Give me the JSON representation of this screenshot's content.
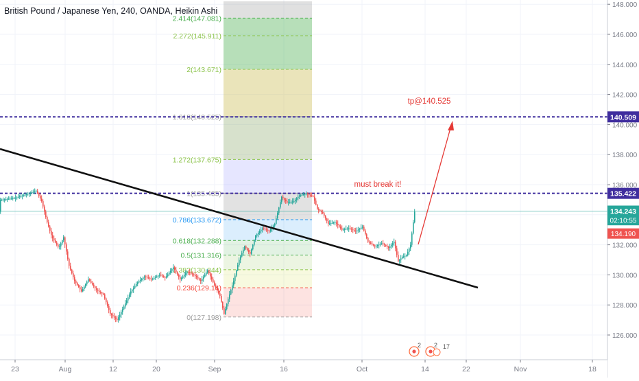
{
  "chart_data": {
    "type": "candlestick",
    "title": "British Pound / Japanese Yen, 240, OANDA, Heikin Ashi",
    "x_ticks": [
      "23",
      "Aug",
      "12",
      "20",
      "Sep",
      "16",
      "Oct",
      "14",
      "22",
      "Nov",
      "18"
    ],
    "y_ticks": [
      "126.000",
      "128.000",
      "130.000",
      "132.000",
      "134.000",
      "136.000",
      "138.000",
      "140.000",
      "142.000",
      "144.000",
      "146.000",
      "148.000"
    ],
    "ylim": [
      124.8,
      148.2
    ],
    "price_path": [
      [
        0,
        135.0
      ],
      [
        20,
        135.1
      ],
      [
        40,
        135.4
      ],
      [
        52,
        135.6
      ],
      [
        60,
        134.9
      ],
      [
        68,
        133.5
      ],
      [
        75,
        132.5
      ],
      [
        85,
        131.8
      ],
      [
        92,
        132.5
      ],
      [
        100,
        130.6
      ],
      [
        108,
        129.6
      ],
      [
        118,
        128.9
      ],
      [
        128,
        129.7
      ],
      [
        140,
        129.0
      ],
      [
        150,
        128.7
      ],
      [
        160,
        127.4
      ],
      [
        170,
        127.0
      ],
      [
        180,
        127.9
      ],
      [
        190,
        128.9
      ],
      [
        200,
        129.5
      ],
      [
        210,
        129.9
      ],
      [
        220,
        129.7
      ],
      [
        232,
        130.0
      ],
      [
        240,
        129.8
      ],
      [
        252,
        130.5
      ],
      [
        262,
        129.7
      ],
      [
        272,
        130.2
      ],
      [
        282,
        130.0
      ],
      [
        292,
        129.6
      ],
      [
        302,
        130.3
      ],
      [
        312,
        129.3
      ],
      [
        320,
        128.6
      ],
      [
        326,
        127.4
      ],
      [
        332,
        128.4
      ],
      [
        340,
        129.6
      ],
      [
        348,
        131.0
      ],
      [
        356,
        131.9
      ],
      [
        364,
        131.4
      ],
      [
        372,
        132.6
      ],
      [
        382,
        133.1
      ],
      [
        392,
        132.9
      ],
      [
        400,
        133.4
      ],
      [
        410,
        135.2
      ],
      [
        418,
        134.8
      ],
      [
        428,
        134.9
      ],
      [
        436,
        135.3
      ],
      [
        446,
        135.4
      ],
      [
        456,
        135.2
      ],
      [
        462,
        134.4
      ],
      [
        470,
        134.1
      ],
      [
        478,
        133.4
      ],
      [
        488,
        133.5
      ],
      [
        498,
        133.0
      ],
      [
        508,
        133.1
      ],
      [
        518,
        132.9
      ],
      [
        528,
        133.2
      ],
      [
        536,
        132.2
      ],
      [
        546,
        131.9
      ],
      [
        556,
        132.1
      ],
      [
        566,
        131.8
      ],
      [
        574,
        132.2
      ],
      [
        580,
        130.9
      ],
      [
        586,
        131.2
      ],
      [
        592,
        131.3
      ],
      [
        598,
        132.0
      ],
      [
        602,
        133.5
      ],
      [
        604,
        134.2
      ]
    ],
    "levels": [
      {
        "price": 140.509,
        "label": "140.509",
        "color": "#1a237e"
      },
      {
        "price": 135.422,
        "label": "135.422",
        "color": "#1a237e"
      },
      {
        "price": 134.243,
        "label": "134.243",
        "color": "#26a69a"
      }
    ],
    "axis_badges": [
      {
        "label": "02:10:55",
        "color": "#26a69a",
        "price": 133.64
      },
      {
        "label": "134.190",
        "color": "#ef5350",
        "price": 132.75
      }
    ],
    "fib_levels": [
      {
        "label": "2.414(147.081)",
        "price": 147.081,
        "color": "#4caf50"
      },
      {
        "label": "2.272(145.911)",
        "price": 145.911,
        "color": "#8bc34a"
      },
      {
        "label": "2(143.671)",
        "price": 143.671,
        "color": "#8bc34a"
      },
      {
        "label": "1.618(140.525)",
        "price": 140.525,
        "color": "#9e9e9e"
      },
      {
        "label": "1.272(137.675)",
        "price": 137.675,
        "color": "#8bc34a"
      },
      {
        "label": "1(135.435)",
        "price": 135.435,
        "color": "#9e9e9e"
      },
      {
        "label": "0.786(133.672)",
        "price": 133.672,
        "color": "#2196f3"
      },
      {
        "label": "0.618(132.288)",
        "price": 132.288,
        "color": "#4caf50"
      },
      {
        "label": "0.5(131.316)",
        "price": 131.316,
        "color": "#4caf50"
      },
      {
        "label": "0.382(130.344)",
        "price": 130.344,
        "color": "#8bc34a"
      },
      {
        "label": "0.236(129.14)",
        "price": 129.14,
        "color": "#f44336"
      },
      {
        "label": "0(127.198)",
        "price": 127.198,
        "color": "#9e9e9e"
      }
    ],
    "annotations": [
      {
        "text": "tp@140.525",
        "color": "#e53935"
      },
      {
        "text": "must break it!",
        "color": "#e53935"
      }
    ],
    "event_markers": [
      "2",
      "2",
      "17"
    ]
  }
}
